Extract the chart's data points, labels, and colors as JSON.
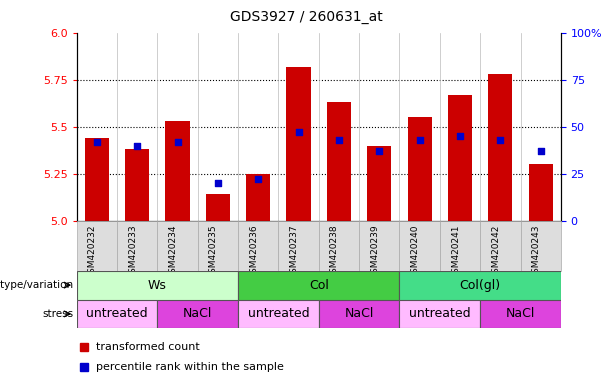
{
  "title": "GDS3927 / 260631_at",
  "samples": [
    "GSM420232",
    "GSM420233",
    "GSM420234",
    "GSM420235",
    "GSM420236",
    "GSM420237",
    "GSM420238",
    "GSM420239",
    "GSM420240",
    "GSM420241",
    "GSM420242",
    "GSM420243"
  ],
  "bar_values": [
    5.44,
    5.38,
    5.53,
    5.14,
    5.25,
    5.82,
    5.63,
    5.4,
    5.55,
    5.67,
    5.78,
    5.3
  ],
  "percentile_values": [
    42,
    40,
    42,
    20,
    22,
    47,
    43,
    37,
    43,
    45,
    43,
    37
  ],
  "ylim_left": [
    5.0,
    6.0
  ],
  "ylim_right": [
    0,
    100
  ],
  "yticks_left": [
    5.0,
    5.25,
    5.5,
    5.75,
    6.0
  ],
  "yticks_right": [
    0,
    25,
    50,
    75,
    100
  ],
  "bar_color": "#cc0000",
  "percentile_color": "#0000cc",
  "bar_width": 0.6,
  "genotype_groups": [
    {
      "label": "Ws",
      "start": 0,
      "end": 3,
      "color": "#ccffcc"
    },
    {
      "label": "Col",
      "start": 4,
      "end": 7,
      "color": "#44cc44"
    },
    {
      "label": "Col(gl)",
      "start": 8,
      "end": 11,
      "color": "#44dd88"
    }
  ],
  "stress_groups": [
    {
      "label": "untreated",
      "start": 0,
      "end": 1,
      "color": "#ffbbff"
    },
    {
      "label": "NaCl",
      "start": 2,
      "end": 3,
      "color": "#dd44dd"
    },
    {
      "label": "untreated",
      "start": 4,
      "end": 5,
      "color": "#ffbbff"
    },
    {
      "label": "NaCl",
      "start": 6,
      "end": 7,
      "color": "#dd44dd"
    },
    {
      "label": "untreated",
      "start": 8,
      "end": 9,
      "color": "#ffbbff"
    },
    {
      "label": "NaCl",
      "start": 10,
      "end": 11,
      "color": "#dd44dd"
    }
  ],
  "tick_bg_color": "#dddddd",
  "grid_yticks": [
    5.25,
    5.5,
    5.75
  ],
  "fig_bg_color": "#ffffff"
}
